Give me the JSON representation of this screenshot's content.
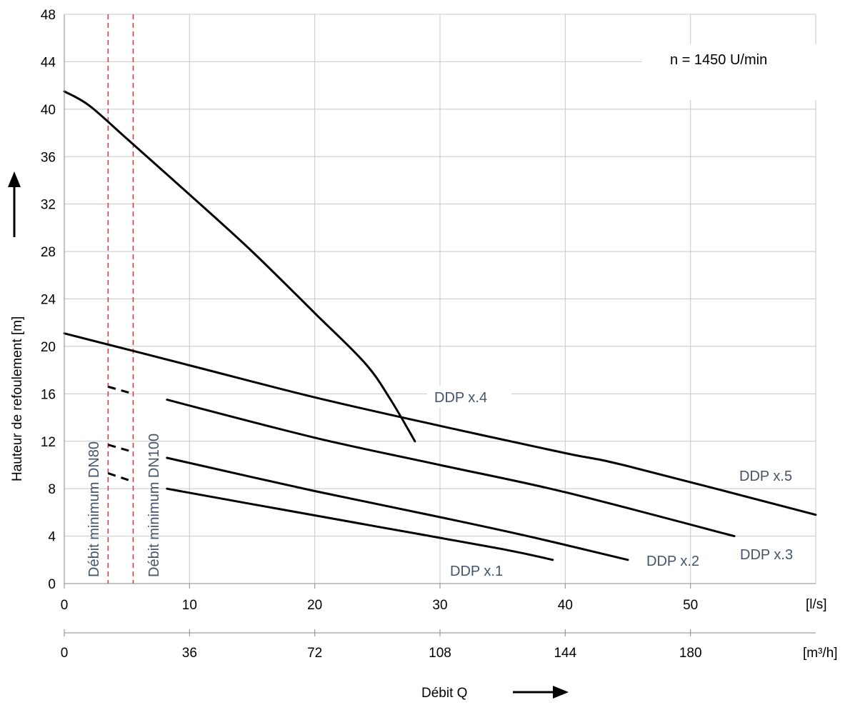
{
  "chart_data": {
    "type": "line",
    "title": "",
    "annotation": "n = 1450   U/min",
    "ylabel": "Hauteur de refoulement  [m]",
    "xlabel": "Débit Q",
    "x_unit_primary": "[l/s]",
    "x_unit_secondary": "[m³/h]",
    "xlim": [
      0,
      60
    ],
    "ylim": [
      0,
      48
    ],
    "x_ticks_primary": [
      0,
      10,
      20,
      30,
      40,
      50
    ],
    "x_ticks_secondary": [
      0,
      36,
      72,
      108,
      144,
      180
    ],
    "y_ticks": [
      0,
      4,
      8,
      12,
      16,
      20,
      24,
      28,
      32,
      36,
      40,
      44,
      48
    ],
    "grid": true,
    "minimum_flow_lines": [
      {
        "name": "Débit minimum DN80",
        "x": 3.5,
        "color": "#e03030"
      },
      {
        "name": "Débit minimum DN100",
        "x": 5.5,
        "color": "#e03030"
      }
    ],
    "series": [
      {
        "name": "DDP x.1",
        "color": "#000000",
        "dashed": [
          [
            3.5,
            9.3
          ],
          [
            5.5,
            8.6
          ]
        ],
        "points": [
          [
            8.2,
            8.0
          ],
          [
            15,
            6.7
          ],
          [
            25,
            4.8
          ],
          [
            35,
            2.9
          ],
          [
            39,
            2.0
          ]
        ]
      },
      {
        "name": "DDP x.2",
        "color": "#000000",
        "dashed": [
          [
            3.5,
            11.7
          ],
          [
            5.5,
            11.1
          ]
        ],
        "points": [
          [
            8.2,
            10.6
          ],
          [
            20,
            7.8
          ],
          [
            30,
            5.6
          ],
          [
            37,
            4.0
          ],
          [
            45,
            2.0
          ]
        ]
      },
      {
        "name": "DDP x.3",
        "color": "#000000",
        "dashed": [
          [
            3.5,
            16.6
          ],
          [
            5.5,
            16.0
          ]
        ],
        "points": [
          [
            8.2,
            15.5
          ],
          [
            20,
            12.3
          ],
          [
            30,
            10.0
          ],
          [
            40,
            7.7
          ],
          [
            53.5,
            4.0
          ]
        ]
      },
      {
        "name": "DDP x.4",
        "color": "#000000",
        "points": [
          [
            0,
            21.1
          ],
          [
            10,
            18.4
          ],
          [
            20,
            15.7
          ],
          [
            30,
            13.3
          ],
          [
            40,
            11.0
          ],
          [
            45,
            9.9
          ],
          [
            60,
            5.8
          ]
        ]
      },
      {
        "name": "DDP x.5",
        "color": "#000000",
        "points": [
          [
            0,
            41.5
          ],
          [
            2,
            40.3
          ],
          [
            5,
            37.5
          ],
          [
            10,
            32.8
          ],
          [
            15,
            28.0
          ],
          [
            20,
            22.8
          ],
          [
            24,
            18.6
          ],
          [
            26,
            15.6
          ],
          [
            28,
            12.0
          ]
        ]
      }
    ],
    "labels": {
      "x1": "DDP x.1",
      "x2": "DDP x.2",
      "x3": "DDP x.3",
      "x4": "DDP x.4",
      "x5": "DDP x.5",
      "dn80": "Débit minimum DN80",
      "dn100": "Débit minimum DN100"
    }
  }
}
